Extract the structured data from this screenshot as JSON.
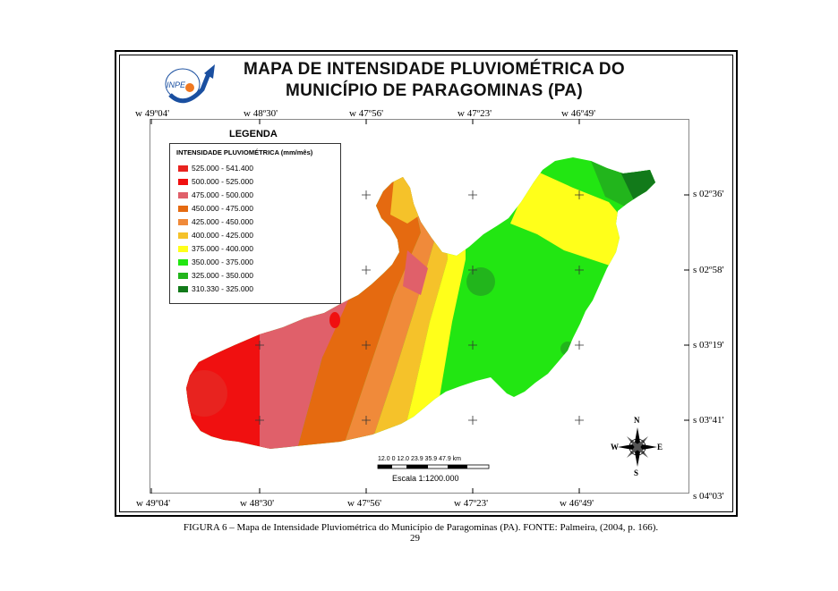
{
  "title": {
    "line1": "MAPA DE INTENSIDADE PLUVIOMÉTRICA DO",
    "line2": "MUNICÍPIO DE PARAGOMINAS (PA)"
  },
  "logo": {
    "text": "INPE"
  },
  "coords": {
    "top": [
      "w 49º04'",
      "w 48º30'",
      "w 47º56'",
      "w 47º23'",
      "w 46º49'"
    ],
    "bottom": [
      "w 49º04'",
      "w 48º30'",
      "w 47º56'",
      "w 47º23'",
      "w 46º49'"
    ],
    "right": [
      "s 02º36'",
      "s 02º58'",
      "s 03º19'",
      "s 03º41'",
      "s 04º03'"
    ]
  },
  "legend": {
    "title": "LEGENDA",
    "subtitle": "INTENSIDADE PLUVIOMÉTRICA (mm/mês)",
    "items": [
      {
        "label": "525.000 - 541.400",
        "color": "#e8231f"
      },
      {
        "label": "500.000 - 525.000",
        "color": "#f01010"
      },
      {
        "label": "475.000 - 500.000",
        "color": "#e0606a"
      },
      {
        "label": "450.000 - 475.000",
        "color": "#e56a10"
      },
      {
        "label": "425.000 - 450.000",
        "color": "#f08a3a"
      },
      {
        "label": "400.000 - 425.000",
        "color": "#f5c22a"
      },
      {
        "label": "375.000 - 400.000",
        "color": "#ffff1a"
      },
      {
        "label": "350.000 - 375.000",
        "color": "#22e612"
      },
      {
        "label": "325.000 - 350.000",
        "color": "#22b51c"
      },
      {
        "label": "310.330 - 325.000",
        "color": "#127a1a"
      }
    ]
  },
  "scale": {
    "ticks": "12.0   0    12.0  23.9   35.9  47.9 km",
    "label": "Escala 1:1200.000"
  },
  "compass": {
    "n": "N",
    "s": "S",
    "e": "E",
    "w": "W"
  },
  "caption": "FIGURA 6 – Mapa de Intensidade Pluviométrica do Município de Paragominas (PA). FONTE: Palmeira, (2004, p. 166).",
  "page_number": "29"
}
